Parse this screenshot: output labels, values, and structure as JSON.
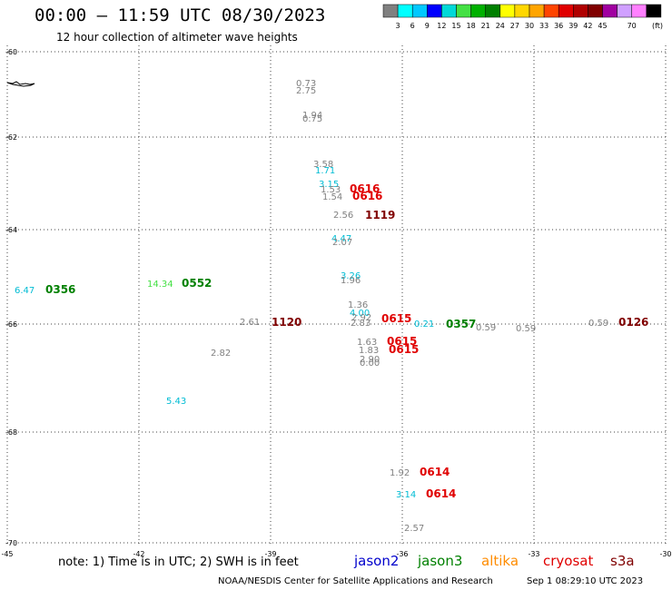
{
  "header": {
    "title": "00:00 – 11:59 UTC 08/30/2023",
    "subtitle": "12 hour collection of altimeter wave heights"
  },
  "color_scale": {
    "unit_label": "(ft)",
    "colors": [
      "#808080",
      "#00ffff",
      "#00c8ff",
      "#0000ff",
      "#00d8d8",
      "#44e044",
      "#00b000",
      "#008000",
      "#ffff00",
      "#ffd700",
      "#ffa500",
      "#ff4500",
      "#e00000",
      "#b00000",
      "#800000",
      "#a000a0",
      "#d0a0ff",
      "#ff80ff",
      "#000000"
    ],
    "labels": [
      "3",
      "6",
      "9",
      "12",
      "15",
      "18",
      "21",
      "24",
      "27",
      "30",
      "33",
      "36",
      "39",
      "42",
      "45",
      "70"
    ]
  },
  "axes": {
    "x_ticks": [
      "-45",
      "-42",
      "-39",
      "-36",
      "-33",
      "-30"
    ],
    "y_ticks": [
      "-60",
      "-62",
      "-64",
      "-66",
      "-68",
      "-70"
    ]
  },
  "observations": {
    "heights": [
      {
        "text": "0.73",
        "color": "#808080"
      },
      {
        "text": "2.75",
        "color": "#808080"
      },
      {
        "text": "1.94",
        "color": "#808080"
      },
      {
        "text": "0.75",
        "color": "#808080"
      },
      {
        "text": "3.58",
        "color": "#808080"
      },
      {
        "text": "1.71",
        "color": "#00bcd4"
      },
      {
        "text": "3.15",
        "color": "#00bcd4"
      },
      {
        "text": "1.53",
        "color": "#808080"
      },
      {
        "text": "1.54",
        "color": "#808080"
      },
      {
        "text": "2.56",
        "color": "#808080"
      },
      {
        "text": "4.47",
        "color": "#00bcd4"
      },
      {
        "text": "2.07",
        "color": "#808080"
      },
      {
        "text": "3.26",
        "color": "#00bcd4"
      },
      {
        "text": "1.96",
        "color": "#808080"
      },
      {
        "text": "1.36",
        "color": "#808080"
      },
      {
        "text": "4.00",
        "color": "#00bcd4"
      },
      {
        "text": "2.92",
        "color": "#808080"
      },
      {
        "text": "2.83",
        "color": "#808080"
      },
      {
        "text": "2.61",
        "color": "#808080"
      },
      {
        "text": "6.47",
        "color": "#00bcd4"
      },
      {
        "text": "14.34",
        "color": "#44e044"
      },
      {
        "text": "2.82",
        "color": "#808080"
      },
      {
        "text": "5.43",
        "color": "#00bcd4"
      },
      {
        "text": "0.59",
        "color": "#808080"
      },
      {
        "text": "0.59",
        "color": "#808080"
      },
      {
        "text": "0.59",
        "color": "#808080"
      },
      {
        "text": "1.63",
        "color": "#808080"
      },
      {
        "text": "1.83",
        "color": "#808080"
      },
      {
        "text": "2.90",
        "color": "#808080"
      },
      {
        "text": "0.00",
        "color": "#808080"
      },
      {
        "text": "1.92",
        "color": "#808080"
      },
      {
        "text": "3.14",
        "color": "#00bcd4"
      },
      {
        "text": "2.57",
        "color": "#808080"
      },
      {
        "text": "0.21",
        "color": "#00bcd4"
      }
    ],
    "passes": [
      {
        "text": "0616",
        "color": "#e00000"
      },
      {
        "text": "0616",
        "color": "#e00000"
      },
      {
        "text": "1119",
        "color": "#800000"
      },
      {
        "text": "0356",
        "color": "#008000"
      },
      {
        "text": "0552",
        "color": "#008000"
      },
      {
        "text": "1120",
        "color": "#800000"
      },
      {
        "text": "0615",
        "color": "#e00000"
      },
      {
        "text": "0357",
        "color": "#008000"
      },
      {
        "text": "0126",
        "color": "#800000"
      },
      {
        "text": "0615",
        "color": "#e00000"
      },
      {
        "text": "0615",
        "color": "#e00000"
      },
      {
        "text": "0614",
        "color": "#e00000"
      },
      {
        "text": "0614",
        "color": "#e00000"
      }
    ]
  },
  "footer": {
    "note": "note: 1) Time is in UTC; 2) SWH is in feet",
    "credit": "NOAA/NESDIS Center for Satellite Applications and Research",
    "timestamp": "Sep  1 08:29:10 UTC 2023",
    "satellites": [
      {
        "name": "jason2",
        "color": "#0000cc"
      },
      {
        "name": "jason3",
        "color": "#008000"
      },
      {
        "name": "altika",
        "color": "#ff8c00"
      },
      {
        "name": "cryosat",
        "color": "#e00000"
      },
      {
        "name": "s3a",
        "color": "#800000"
      }
    ]
  }
}
